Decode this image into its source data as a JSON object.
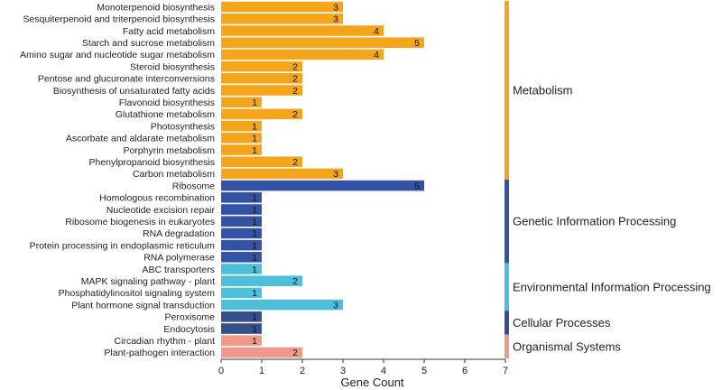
{
  "chart_data": {
    "type": "bar",
    "orientation": "horizontal",
    "xlabel": "Gene Count",
    "ylabel": "",
    "xlim": [
      0,
      7
    ],
    "xticks": [
      "0",
      "1",
      "2",
      "3",
      "4",
      "5",
      "6",
      "7"
    ],
    "grid": false,
    "groups": [
      {
        "name": "Metabolism",
        "color": "#F4A51C",
        "items": [
          {
            "label": "Monoterpenoid biosynthesis",
            "value": 3
          },
          {
            "label": "Sesquiterpenoid and triterpenoid biosynthesis",
            "value": 3
          },
          {
            "label": "Fatty acid metabolism",
            "value": 4
          },
          {
            "label": "Starch and sucrose metabolism",
            "value": 5
          },
          {
            "label": "Amino sugar and nucleotide sugar metabolism",
            "value": 4
          },
          {
            "label": "Steroid biosynthesis",
            "value": 2
          },
          {
            "label": "Pentose and glucuronate interconversions",
            "value": 2
          },
          {
            "label": "Biosynthesis of unsaturated fatty acids",
            "value": 2
          },
          {
            "label": "Flavonoid biosynthesis",
            "value": 1
          },
          {
            "label": "Glutathione metabolism",
            "value": 2
          },
          {
            "label": "Photosynthesis",
            "value": 1
          },
          {
            "label": "Ascorbate and aldarate metabolism",
            "value": 1
          },
          {
            "label": "Porphyrin metabolism",
            "value": 1
          },
          {
            "label": "Phenylpropanoid biosynthesis",
            "value": 2
          },
          {
            "label": "Carbon metabolism",
            "value": 3
          }
        ]
      },
      {
        "name": "Genetic Information Processing",
        "color": "#3553A4",
        "items": [
          {
            "label": "Ribosome",
            "value": 5
          },
          {
            "label": "Homologous recombination",
            "value": 1
          },
          {
            "label": "Nucleotide excision repair",
            "value": 1
          },
          {
            "label": "Ribosome biogenesis in eukaryotes",
            "value": 1
          },
          {
            "label": "RNA degradation",
            "value": 1
          },
          {
            "label": "Protein processing in endoplasmic reticulum",
            "value": 1
          },
          {
            "label": "RNA polymerase",
            "value": 1
          }
        ]
      },
      {
        "name": "Environmental Information Processing",
        "color": "#4DBFD9",
        "items": [
          {
            "label": "ABC transporters",
            "value": 1
          },
          {
            "label": "MAPK signaling pathway - plant",
            "value": 2
          },
          {
            "label": "Phosphatidylinositol signaling system",
            "value": 1
          },
          {
            "label": "Plant hormone signal transduction",
            "value": 3
          }
        ]
      },
      {
        "name": "Cellular Processes",
        "color": "#34508A",
        "items": [
          {
            "label": "Peroxisome",
            "value": 1
          },
          {
            "label": "Endocytosis",
            "value": 1
          }
        ]
      },
      {
        "name": "Organismal Systems",
        "color": "#F0988A",
        "items": [
          {
            "label": "Circadian rhythm - plant",
            "value": 1
          },
          {
            "label": "Plant-pathogen interaction",
            "value": 2
          }
        ]
      }
    ]
  }
}
